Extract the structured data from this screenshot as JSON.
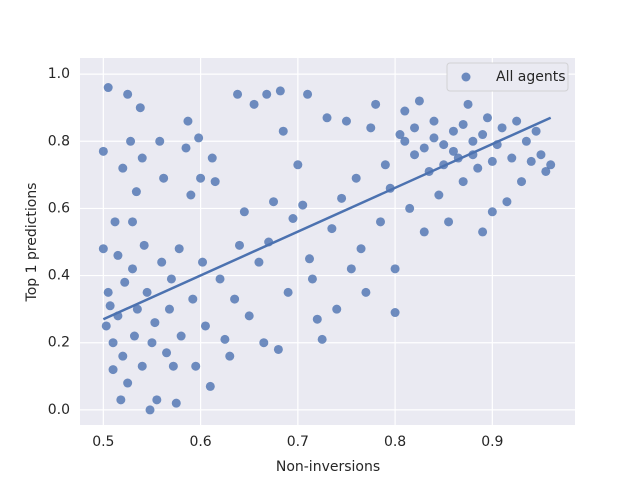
{
  "chart_data": {
    "type": "scatter",
    "x_label": "Non-inversions",
    "y_label": "Top 1 predictions",
    "xlim": [
      0.476,
      0.985
    ],
    "ylim": [
      -0.045,
      1.048
    ],
    "xticks": [
      0.5,
      0.6,
      0.7,
      0.8,
      0.9
    ],
    "yticks": [
      {
        "value": 0,
        "label": "0.0"
      },
      0.2,
      0.4,
      0.6,
      0.8,
      {
        "value": 1,
        "label": "1.0"
      }
    ],
    "grid": true,
    "legend": "upper right",
    "series": [
      {
        "name": "All agents",
        "color": "#4c72b0",
        "x": [
          0.5,
          0.5,
          0.505,
          0.503,
          0.505,
          0.507,
          0.51,
          0.51,
          0.512,
          0.515,
          0.515,
          0.518,
          0.52,
          0.52,
          0.522,
          0.525,
          0.525,
          0.528,
          0.53,
          0.53,
          0.532,
          0.534,
          0.535,
          0.538,
          0.54,
          0.54,
          0.542,
          0.545,
          0.548,
          0.55,
          0.553,
          0.555,
          0.558,
          0.56,
          0.562,
          0.565,
          0.568,
          0.57,
          0.572,
          0.575,
          0.578,
          0.58,
          0.585,
          0.587,
          0.59,
          0.592,
          0.595,
          0.598,
          0.6,
          0.602,
          0.605,
          0.61,
          0.612,
          0.615,
          0.62,
          0.625,
          0.63,
          0.635,
          0.638,
          0.64,
          0.645,
          0.65,
          0.655,
          0.66,
          0.665,
          0.668,
          0.67,
          0.675,
          0.68,
          0.682,
          0.685,
          0.69,
          0.695,
          0.7,
          0.705,
          0.71,
          0.712,
          0.715,
          0.72,
          0.725,
          0.73,
          0.735,
          0.74,
          0.745,
          0.75,
          0.755,
          0.76,
          0.765,
          0.77,
          0.775,
          0.78,
          0.785,
          0.79,
          0.795,
          0.8,
          0.8,
          0.805,
          0.81,
          0.815,
          0.82,
          0.825,
          0.83,
          0.835,
          0.84,
          0.845,
          0.85,
          0.855,
          0.86,
          0.865,
          0.87,
          0.875,
          0.88,
          0.885,
          0.89,
          0.895,
          0.9,
          0.905,
          0.91,
          0.915,
          0.92,
          0.925,
          0.93,
          0.935,
          0.94,
          0.945,
          0.95,
          0.955,
          0.96,
          0.81,
          0.82,
          0.83,
          0.84,
          0.85,
          0.86,
          0.87,
          0.88,
          0.89,
          0.9
        ],
        "values": [
          0.48,
          0.77,
          0.96,
          0.25,
          0.35,
          0.31,
          0.2,
          0.12,
          0.56,
          0.46,
          0.28,
          0.03,
          0.72,
          0.16,
          0.38,
          0.94,
          0.08,
          0.8,
          0.56,
          0.42,
          0.22,
          0.65,
          0.3,
          0.9,
          0.75,
          0.13,
          0.49,
          0.35,
          0.0,
          0.2,
          0.26,
          0.03,
          0.8,
          0.44,
          0.69,
          0.17,
          0.3,
          0.39,
          0.13,
          0.02,
          0.48,
          0.22,
          0.78,
          0.86,
          0.64,
          0.33,
          0.13,
          0.81,
          0.69,
          0.44,
          0.25,
          0.07,
          0.75,
          0.68,
          0.39,
          0.21,
          0.16,
          0.33,
          0.94,
          0.49,
          0.59,
          0.28,
          0.91,
          0.44,
          0.2,
          0.94,
          0.5,
          0.62,
          0.18,
          0.95,
          0.83,
          0.35,
          0.57,
          0.73,
          0.61,
          0.94,
          0.45,
          0.39,
          0.27,
          0.21,
          0.87,
          0.54,
          0.3,
          0.63,
          0.86,
          0.42,
          0.69,
          0.48,
          0.35,
          0.84,
          0.91,
          0.56,
          0.73,
          0.66,
          0.29,
          0.42,
          0.82,
          0.89,
          0.6,
          0.76,
          0.92,
          0.53,
          0.71,
          0.86,
          0.64,
          0.79,
          0.56,
          0.83,
          0.75,
          0.68,
          0.91,
          0.8,
          0.72,
          0.53,
          0.87,
          0.59,
          0.79,
          0.84,
          0.62,
          0.75,
          0.86,
          0.68,
          0.8,
          0.74,
          0.83,
          0.76,
          0.71,
          0.73,
          0.8,
          0.84,
          0.78,
          0.81,
          0.73,
          0.77,
          0.85,
          0.76,
          0.82,
          0.74
        ]
      }
    ],
    "regression": {
      "x": [
        0.5,
        0.96
      ],
      "y": [
        0.27,
        0.87
      ]
    }
  }
}
